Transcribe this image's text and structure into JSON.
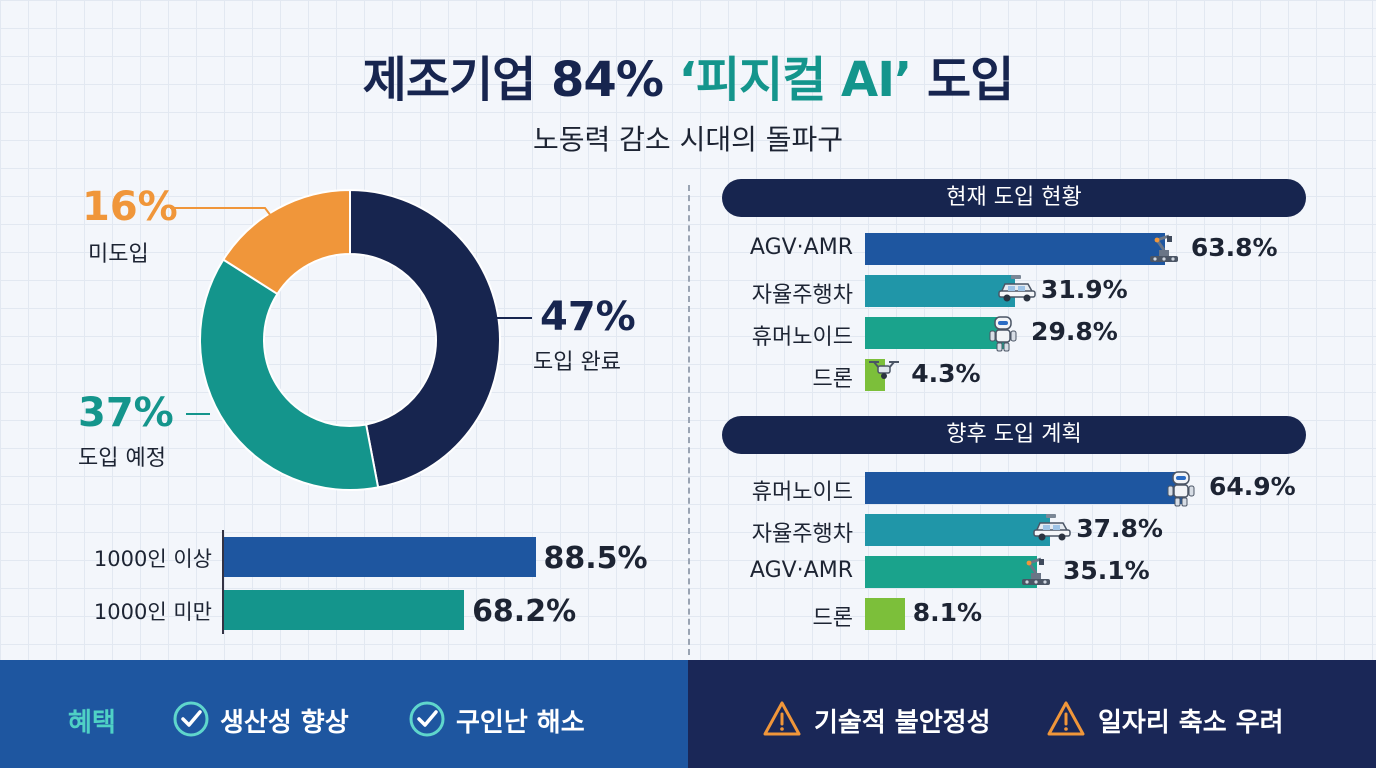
{
  "header": {
    "title_main": "제조기업 84% ",
    "title_accent": "‘피지컬 AI’",
    "title_tail": " 도입",
    "subtitle": "노동력 감소 시대의 돌파구"
  },
  "colors": {
    "navy": "#17254f",
    "blue": "#1e56a0",
    "teal_dark": "#14958c",
    "teal_light": "#2096a8",
    "teal_green": "#1aa38c",
    "lime": "#7cbf3a",
    "orange": "#f0963a"
  },
  "chart_data": [
    {
      "type": "pie",
      "variant": "donut",
      "slices": [
        {
          "label": "도입 완료",
          "value": 47,
          "display": "47%",
          "color": "#17254f"
        },
        {
          "label": "도입 예정",
          "value": 37,
          "display": "37%",
          "color": "#14958c"
        },
        {
          "label": "미도입",
          "value": 16,
          "display": "16%",
          "color": "#f0963a"
        }
      ]
    },
    {
      "type": "bar",
      "orientation": "horizontal",
      "categories": [
        "1000인 이상",
        "1000인 미만"
      ],
      "values": [
        88.5,
        68.2
      ],
      "display": [
        "88.5%",
        "68.2%"
      ],
      "colors": [
        "#1e56a0",
        "#14958c"
      ],
      "xlim": [
        0,
        100
      ]
    },
    {
      "type": "bar",
      "orientation": "horizontal",
      "title": "현재 도입 현황",
      "categories": [
        "AGV·AMR",
        "자율주행차",
        "휴머노이드",
        "드론"
      ],
      "values": [
        63.8,
        31.9,
        29.8,
        4.3
      ],
      "display": [
        "63.8%",
        "31.9%",
        "29.8%",
        "4.3%"
      ],
      "icons": [
        "robot-arm-icon",
        "car-icon",
        "humanoid-robot-icon",
        "drone-icon"
      ],
      "colors": [
        "#1e56a0",
        "#2096a8",
        "#1aa38c",
        "#7cbf3a"
      ],
      "xlim": [
        0,
        100
      ]
    },
    {
      "type": "bar",
      "orientation": "horizontal",
      "title": "향후 도입 계획",
      "categories": [
        "휴머노이드",
        "자율주행차",
        "AGV·AMR",
        "드론"
      ],
      "values": [
        64.9,
        37.8,
        35.1,
        8.1
      ],
      "display": [
        "64.9%",
        "37.8%",
        "35.1%",
        "8.1%"
      ],
      "icons": [
        "humanoid-robot-icon",
        "car-icon",
        "robot-arm-icon",
        ""
      ],
      "colors": [
        "#1e56a0",
        "#2096a8",
        "#1aa38c",
        "#7cbf3a"
      ],
      "xlim": [
        0,
        100
      ]
    }
  ],
  "footer": {
    "benefits_label": "혜택",
    "benefits": [
      "생산성 향상",
      "구인난 해소"
    ],
    "concerns": [
      "기술적 불안정성",
      "일자리 축소 우려"
    ]
  }
}
